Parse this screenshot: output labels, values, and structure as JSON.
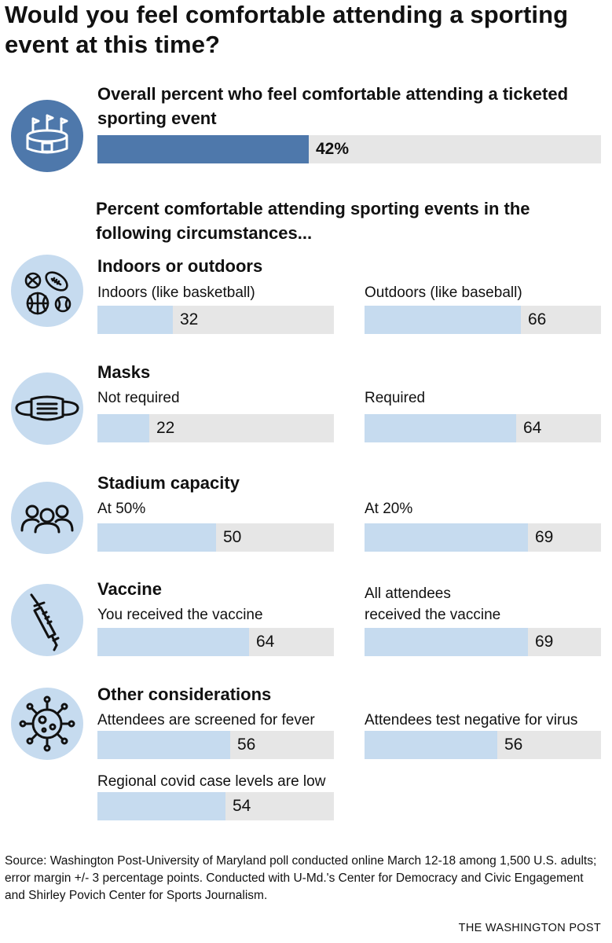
{
  "title": "Would you feel comfortable attending a sporting event at this time?",
  "overall": {
    "label": "Overall percent who feel comfortable attending a ticketed sporting event",
    "value": 42,
    "value_label": "42%",
    "icon": "stadium-icon"
  },
  "subheading": "Percent comfortable attending sporting events in the following circumstances...",
  "colors": {
    "overall_fill": "#4e78ab",
    "bar_fill": "#c6dbef",
    "track": "#e6e6e6",
    "icon_circle": "#c6dbef"
  },
  "groups": [
    {
      "title": "Indoors or outdoors",
      "icon": "sports-balls-icon",
      "bars": [
        {
          "label": "Indoors (like basketball)",
          "value": 32,
          "value_label": "32"
        },
        {
          "label": "Outdoors (like baseball)",
          "value": 66,
          "value_label": "66"
        }
      ]
    },
    {
      "title": "Masks",
      "icon": "face-mask-icon",
      "bars": [
        {
          "label": "Not required",
          "value": 22,
          "value_label": "22"
        },
        {
          "label": "Required",
          "value": 64,
          "value_label": "64"
        }
      ]
    },
    {
      "title": "Stadium capacity",
      "icon": "crowd-icon",
      "bars": [
        {
          "label": "At 50%",
          "value": 50,
          "value_label": "50"
        },
        {
          "label": "At 20%",
          "value": 69,
          "value_label": "69"
        }
      ]
    },
    {
      "title": "Vaccine",
      "icon": "syringe-icon",
      "bars": [
        {
          "label": "You received the vaccine",
          "value": 64,
          "value_label": "64"
        },
        {
          "label": "All attendees received the vaccine",
          "label_line1": "All attendees",
          "label_line2": "received the vaccine",
          "value": 69,
          "value_label": "69"
        }
      ]
    },
    {
      "title": "Other considerations",
      "icon": "virus-icon",
      "bars": [
        {
          "label": "Attendees are screened for fever",
          "value": 56,
          "value_label": "56"
        },
        {
          "label": "Attendees test negative for virus",
          "value": 56,
          "value_label": "56"
        },
        {
          "label": "Regional covid case levels are low",
          "value": 54,
          "value_label": "54"
        }
      ]
    }
  ],
  "chart_data": {
    "type": "bar",
    "title": "Would you feel comfortable attending a sporting event at this time?",
    "xlim": [
      0,
      100
    ],
    "unit": "percent",
    "series": [
      {
        "name": "Overall percent who feel comfortable attending a ticketed sporting event",
        "categories": [
          "Overall"
        ],
        "values": [
          42
        ]
      },
      {
        "name": "Indoors or outdoors",
        "categories": [
          "Indoors (like basketball)",
          "Outdoors (like baseball)"
        ],
        "values": [
          32,
          66
        ]
      },
      {
        "name": "Masks",
        "categories": [
          "Not required",
          "Required"
        ],
        "values": [
          22,
          64
        ]
      },
      {
        "name": "Stadium capacity",
        "categories": [
          "At 50%",
          "At 20%"
        ],
        "values": [
          50,
          69
        ]
      },
      {
        "name": "Vaccine",
        "categories": [
          "You received the vaccine",
          "All attendees received the vaccine"
        ],
        "values": [
          64,
          69
        ]
      },
      {
        "name": "Other considerations",
        "categories": [
          "Attendees are screened for fever",
          "Attendees test negative for virus",
          "Regional covid case levels are low"
        ],
        "values": [
          56,
          56,
          54
        ]
      }
    ]
  },
  "source": "Source: Washington Post-University of Maryland poll conducted online March 12-18 among 1,500 U.S. adults; error margin +/- 3 percentage points. Conducted with U-Md.'s Center for Democracy and Civic Engagement and Shirley Povich Center for Sports Journalism.",
  "credit": "THE WASHINGTON POST"
}
